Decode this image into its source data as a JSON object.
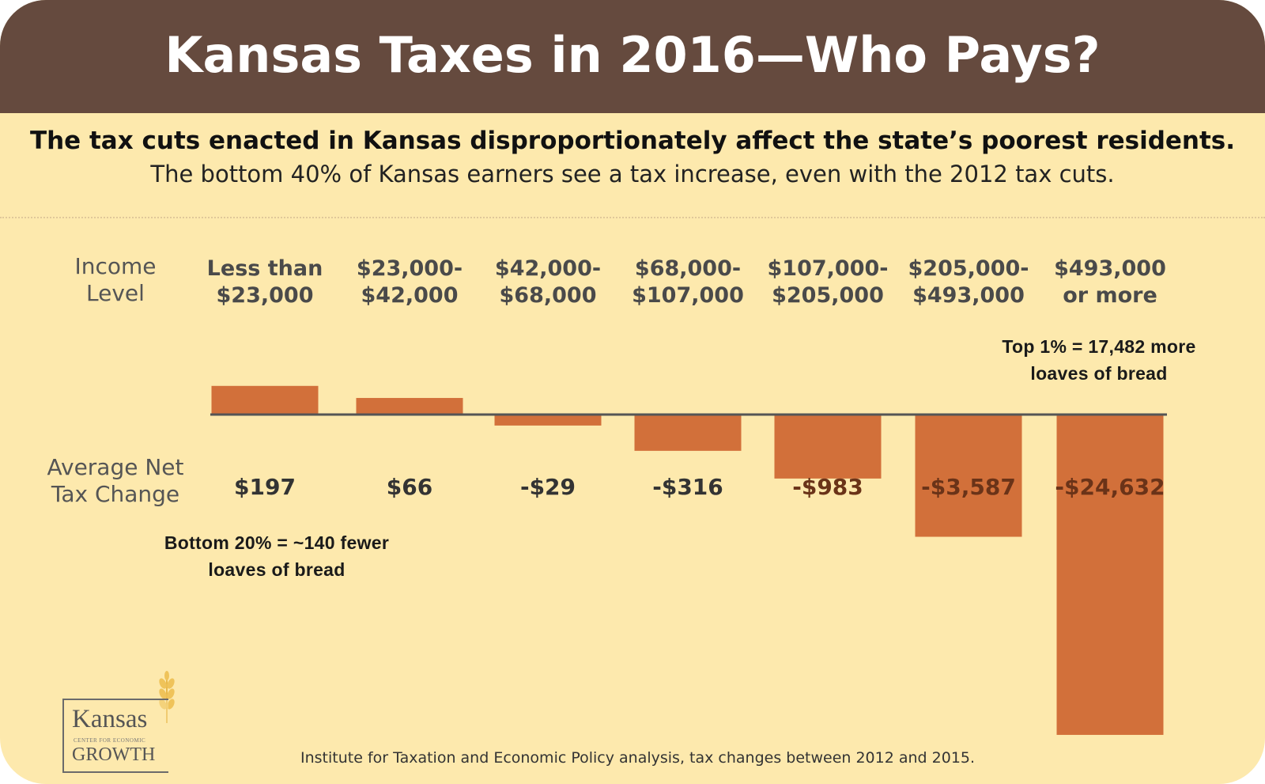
{
  "header": {
    "title": "Kansas Taxes in 2016—Who Pays?",
    "subtitle": "The tax cuts enacted in Kansas disproportionately affect the state’s poorest residents.",
    "subtitle2": "The bottom 40% of Kansas earners see a tax increase, even with the 2012 tax cuts."
  },
  "labels": {
    "income_level": [
      "Income",
      "Level"
    ],
    "avg_net_tax_change": [
      "Average Net",
      "Tax Change"
    ]
  },
  "chart_data": {
    "type": "bar",
    "title": "Kansas Taxes in 2016—Who Pays?",
    "xlabel": "Income Level",
    "ylabel": "Average Net Tax Change",
    "categories": [
      [
        "Less than",
        "$23,000"
      ],
      [
        "$23,000-",
        "$42,000"
      ],
      [
        "$42,000-",
        "$68,000"
      ],
      [
        "$68,000-",
        "$107,000"
      ],
      [
        "$107,000-",
        "$205,000"
      ],
      [
        "$205,000-",
        "$493,000"
      ],
      [
        "$493,000",
        "or more"
      ]
    ],
    "value_labels": [
      "$197",
      "$66",
      "-$29",
      "-$316",
      "-$983",
      "-$3,587",
      "-$24,632"
    ],
    "values": [
      197,
      66,
      -29,
      -316,
      -983,
      -3587,
      -24632
    ],
    "bar_color": "#d2703a"
  },
  "annotations": {
    "bottom": [
      "Bottom 20% = ~140 fewer",
      "loaves of bread"
    ],
    "top": [
      "Top 1% = 17,482 more",
      "loaves of bread"
    ]
  },
  "logo": {
    "name": "Kansas",
    "sub": "CENTER FOR ECONOMIC",
    "growth": "GROWTH"
  },
  "source": "Institute for Taxation and Economic Policy analysis, tax changes between 2012 and 2015.",
  "colors": {
    "header_bg": "#654a3e",
    "card_bg": "#fde9ad",
    "bar": "#d2703a"
  }
}
